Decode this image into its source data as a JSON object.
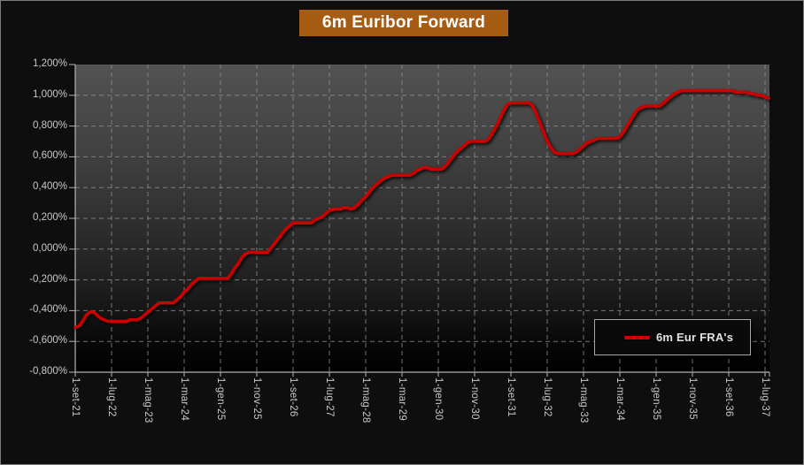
{
  "title": "6m Euribor Forward",
  "legend": {
    "label": "6m Eur FRA's"
  },
  "colors": {
    "line_red": "#cc0000",
    "title_background": "#a75c13",
    "page_background": "#0e0e0e",
    "axis_text": "#c8c8c8"
  },
  "chart_data": {
    "type": "line",
    "title": "6m Euribor Forward",
    "grid": "dashed",
    "legend_position": "inside-lower-right",
    "ylim": [
      -0.8,
      1.2
    ],
    "y_step": 0.2,
    "y_tick_labels": [
      "1,200%",
      "1,000%",
      "0,800%",
      "0,600%",
      "0,400%",
      "0,200%",
      "0,000%",
      "-0,200%",
      "-0,400%",
      "-0,600%",
      "-0,800%"
    ],
    "x_tick_labels": [
      "1-set-21",
      "1-lug-22",
      "1-mag-23",
      "1-mar-24",
      "1-gen-25",
      "1-nov-25",
      "1-set-26",
      "1-lug-27",
      "1-mag-28",
      "1-mar-29",
      "1-gen-30",
      "1-nov-30",
      "1-set-31",
      "1-lug-32",
      "1-mag-33",
      "1-mar-34",
      "1-gen-35",
      "1-nov-35",
      "1-set-36",
      "1-lug-37"
    ],
    "x_months_per_tick": 10,
    "series": [
      {
        "name": "6m Eur FRA's",
        "color": "#cc0000",
        "unit": "percent",
        "start_label": "1-set-21",
        "interval": "monthly",
        "values_monthly_percent": [
          -0.51,
          -0.5,
          -0.47,
          -0.43,
          -0.41,
          -0.41,
          -0.43,
          -0.45,
          -0.46,
          -0.47,
          -0.47,
          -0.47,
          -0.47,
          -0.47,
          -0.47,
          -0.46,
          -0.46,
          -0.46,
          -0.45,
          -0.43,
          -0.41,
          -0.39,
          -0.37,
          -0.35,
          -0.35,
          -0.35,
          -0.35,
          -0.35,
          -0.33,
          -0.31,
          -0.28,
          -0.26,
          -0.23,
          -0.21,
          -0.19,
          -0.19,
          -0.19,
          -0.19,
          -0.19,
          -0.19,
          -0.19,
          -0.19,
          -0.19,
          -0.16,
          -0.12,
          -0.09,
          -0.05,
          -0.03,
          -0.02,
          -0.02,
          -0.02,
          -0.02,
          -0.02,
          -0.02,
          0.01,
          0.04,
          0.07,
          0.1,
          0.13,
          0.15,
          0.17,
          0.17,
          0.17,
          0.17,
          0.17,
          0.17,
          0.19,
          0.2,
          0.21,
          0.23,
          0.25,
          0.26,
          0.26,
          0.26,
          0.27,
          0.27,
          0.26,
          0.27,
          0.29,
          0.32,
          0.34,
          0.37,
          0.4,
          0.42,
          0.44,
          0.46,
          0.47,
          0.48,
          0.48,
          0.48,
          0.48,
          0.48,
          0.48,
          0.49,
          0.51,
          0.52,
          0.53,
          0.53,
          0.52,
          0.52,
          0.52,
          0.52,
          0.54,
          0.57,
          0.6,
          0.63,
          0.65,
          0.67,
          0.69,
          0.7,
          0.7,
          0.7,
          0.7,
          0.7,
          0.72,
          0.76,
          0.8,
          0.85,
          0.9,
          0.94,
          0.95,
          0.95,
          0.95,
          0.95,
          0.95,
          0.95,
          0.93,
          0.88,
          0.82,
          0.76,
          0.7,
          0.66,
          0.63,
          0.62,
          0.62,
          0.62,
          0.62,
          0.62,
          0.63,
          0.65,
          0.67,
          0.69,
          0.7,
          0.71,
          0.72,
          0.72,
          0.72,
          0.72,
          0.72,
          0.72,
          0.73,
          0.76,
          0.8,
          0.84,
          0.88,
          0.91,
          0.92,
          0.93,
          0.93,
          0.93,
          0.93,
          0.93,
          0.95,
          0.97,
          0.99,
          1.01,
          1.02,
          1.03,
          1.03,
          1.03,
          1.03,
          1.03,
          1.03,
          1.03,
          1.03,
          1.03,
          1.03,
          1.03,
          1.03,
          1.03,
          1.03,
          1.03,
          1.02,
          1.02,
          1.02,
          1.02,
          1.01,
          1.01,
          1.0,
          1.0,
          0.99,
          0.98
        ]
      }
    ]
  }
}
